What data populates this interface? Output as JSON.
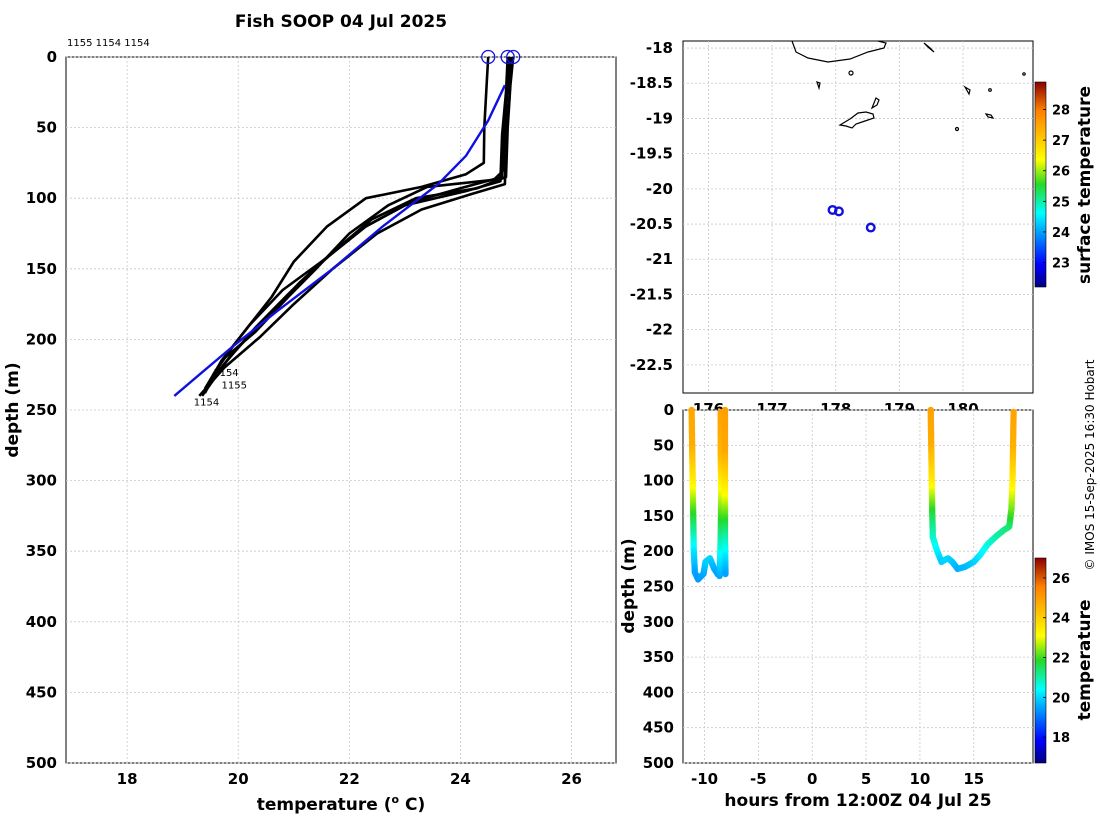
{
  "chart_data": [
    {
      "type": "line",
      "id": "profiles",
      "title": "Fish SOOP 04 Jul 2025",
      "xlabel_main": "temperature (",
      "xlabel_sup": "o",
      "xlabel_end": " C)",
      "ylabel": "depth (m)",
      "xlim": [
        16.9,
        26.8
      ],
      "ylim": [
        0,
        500
      ],
      "xticks": [
        18,
        20,
        22,
        24,
        26
      ],
      "yticks": [
        0,
        50,
        100,
        150,
        200,
        250,
        300,
        350,
        400,
        450,
        500
      ],
      "top_labels": "1155 1154 1154",
      "end_labels": [
        "1154",
        "1155",
        "1154"
      ],
      "colors": {
        "profile": "#000000",
        "mean": "#1010e0"
      },
      "series": [
        {
          "name": "profile-1",
          "values": [
            [
              24.5,
              0
            ],
            [
              24.47,
              20
            ],
            [
              24.43,
              50
            ],
            [
              24.42,
              75
            ],
            [
              24.1,
              83
            ],
            [
              23.3,
              92
            ],
            [
              22.3,
              100
            ],
            [
              21.6,
              120
            ],
            [
              21.0,
              145
            ],
            [
              20.6,
              170
            ],
            [
              20.2,
              190
            ],
            [
              19.9,
              205
            ],
            [
              19.55,
              225
            ]
          ]
        },
        {
          "name": "profile-2",
          "values": [
            [
              24.9,
              0
            ],
            [
              24.85,
              20
            ],
            [
              24.8,
              50
            ],
            [
              24.78,
              80
            ],
            [
              24.6,
              87
            ],
            [
              23.4,
              92
            ],
            [
              22.7,
              105
            ],
            [
              22.0,
              125
            ],
            [
              21.4,
              150
            ],
            [
              20.9,
              170
            ],
            [
              20.3,
              195
            ],
            [
              19.7,
              215
            ],
            [
              19.4,
              235
            ]
          ]
        },
        {
          "name": "profile-3",
          "values": [
            [
              24.95,
              0
            ],
            [
              24.9,
              20
            ],
            [
              24.85,
              50
            ],
            [
              24.82,
              85
            ],
            [
              24.3,
              93
            ],
            [
              23.2,
              100
            ],
            [
              22.4,
              115
            ],
            [
              21.8,
              135
            ],
            [
              21.1,
              160
            ],
            [
              20.5,
              185
            ],
            [
              19.9,
              210
            ],
            [
              19.45,
              232
            ]
          ]
        },
        {
          "name": "profile-4",
          "values": [
            [
              24.85,
              0
            ],
            [
              24.82,
              25
            ],
            [
              24.75,
              55
            ],
            [
              24.72,
              88
            ],
            [
              24.1,
              95
            ],
            [
              23.0,
              105
            ],
            [
              22.2,
              122
            ],
            [
              21.5,
              145
            ],
            [
              20.9,
              168
            ],
            [
              20.3,
              192
            ],
            [
              19.8,
              215
            ],
            [
              19.35,
              240
            ]
          ]
        },
        {
          "name": "profile-5",
          "values": [
            [
              24.92,
              0
            ],
            [
              24.88,
              30
            ],
            [
              24.82,
              60
            ],
            [
              24.8,
              90
            ],
            [
              24.2,
              97
            ],
            [
              23.3,
              108
            ],
            [
              22.5,
              125
            ],
            [
              21.7,
              150
            ],
            [
              21.0,
              175
            ],
            [
              20.4,
              198
            ],
            [
              19.75,
              220
            ],
            [
              19.3,
              240
            ]
          ]
        },
        {
          "name": "profile-6",
          "values": [
            [
              24.88,
              0
            ],
            [
              24.83,
              25
            ],
            [
              24.78,
              55
            ],
            [
              24.75,
              85
            ],
            [
              24.0,
              93
            ],
            [
              23.1,
              103
            ],
            [
              22.3,
              120
            ],
            [
              21.6,
              142
            ],
            [
              20.8,
              165
            ],
            [
              20.2,
              190
            ],
            [
              19.7,
              215
            ],
            [
              19.4,
              238
            ]
          ]
        }
      ],
      "mean": [
        [
          24.8,
          20
        ],
        [
          24.5,
          45
        ],
        [
          24.1,
          70
        ],
        [
          23.6,
          90
        ],
        [
          22.6,
          120
        ],
        [
          21.7,
          150
        ],
        [
          20.7,
          180
        ],
        [
          19.9,
          205
        ],
        [
          19.3,
          225
        ],
        [
          18.85,
          240
        ]
      ],
      "start_markers": [
        [
          24.5,
          0
        ],
        [
          24.85,
          0
        ],
        [
          24.95,
          0
        ]
      ]
    },
    {
      "type": "scatter",
      "id": "map",
      "ylim": [
        -22.9,
        -17.9
      ],
      "xlim": [
        175.6,
        181.1
      ],
      "yticks": [
        -18,
        -18.5,
        -19,
        -19.5,
        -20,
        -20.5,
        -21,
        -21.5,
        -22,
        -22.5
      ],
      "ytick_labels": [
        "-18",
        "-18.5",
        "-19",
        "-19.5",
        "-20",
        "-20.5",
        "-21",
        "-21.5",
        "-22",
        "-22.5"
      ],
      "xticks": [
        176,
        177,
        178,
        179,
        180
      ],
      "xtick_labels": [
        "176",
        "177",
        "178",
        "179",
        "180"
      ],
      "points": [
        [
          177.95,
          -20.3
        ],
        [
          178.05,
          -20.32
        ],
        [
          178.55,
          -20.55
        ]
      ],
      "colorbar": {
        "label": "surface temperature",
        "range": [
          22.2,
          28.9
        ],
        "ticks": [
          23,
          24,
          25,
          26,
          27,
          28
        ]
      }
    },
    {
      "type": "scatter",
      "id": "section",
      "xlabel": "hours from 12:00Z 04 Jul 25",
      "ylabel": "depth (m)",
      "xlim": [
        -12,
        20.5
      ],
      "ylim": [
        0,
        500
      ],
      "xticks": [
        -10,
        -5,
        0,
        5,
        10,
        15
      ],
      "xtick_labels": [
        "-10",
        "-5",
        "0",
        "5",
        "10",
        "15"
      ],
      "yticks": [
        0,
        50,
        100,
        150,
        200,
        250,
        300,
        350,
        400,
        450,
        500
      ],
      "colorbar": {
        "label": "temperature",
        "range": [
          16.7,
          27.0
        ],
        "ticks": [
          18,
          20,
          22,
          24,
          26
        ]
      },
      "casts": [
        {
          "name": "cast-1",
          "values": [
            [
              -11.2,
              0,
              24.8
            ],
            [
              -11.15,
              50,
              24.7
            ],
            [
              -11.1,
              100,
              23.5
            ],
            [
              -11.05,
              150,
              21.8
            ],
            [
              -11.0,
              200,
              20.2
            ],
            [
              -10.9,
              230,
              19.5
            ],
            [
              -10.6,
              240,
              19.4
            ],
            [
              -10.1,
              232,
              19.5
            ],
            [
              -9.9,
              215,
              19.9
            ]
          ]
        },
        {
          "name": "cast-2",
          "values": [
            [
              -9.9,
              215,
              19.9
            ],
            [
              -9.5,
              210,
              20.0
            ],
            [
              -9.1,
              225,
              19.6
            ],
            [
              -8.8,
              232,
              19.5
            ],
            [
              -8.6,
              235,
              19.5
            ],
            [
              -8.5,
              180,
              21.0
            ],
            [
              -8.45,
              120,
              22.8
            ],
            [
              -8.5,
              60,
              24.5
            ],
            [
              -8.5,
              0,
              24.9
            ]
          ]
        },
        {
          "name": "cast-3",
          "values": [
            [
              -8.1,
              0,
              24.95
            ],
            [
              -8.1,
              60,
              24.8
            ],
            [
              -8.1,
              120,
              23.2
            ],
            [
              -8.1,
              180,
              21.0
            ],
            [
              -8.05,
              235,
              19.4
            ]
          ]
        },
        {
          "name": "cast-4",
          "values": [
            [
              11.0,
              0,
              24.9
            ],
            [
              11.05,
              50,
              24.7
            ],
            [
              11.1,
              100,
              23.5
            ],
            [
              11.15,
              150,
              21.6
            ],
            [
              11.2,
              180,
              20.8
            ],
            [
              11.6,
              200,
              20.3
            ],
            [
              12.0,
              215,
              19.9
            ],
            [
              12.6,
              210,
              20.0
            ],
            [
              13.0,
              215,
              19.9
            ],
            [
              13.5,
              225,
              19.6
            ],
            [
              14.2,
              222,
              19.7
            ],
            [
              15.0,
              215,
              19.9
            ],
            [
              15.6,
              205,
              20.2
            ],
            [
              16.3,
              190,
              20.6
            ],
            [
              17.0,
              180,
              20.9
            ],
            [
              17.8,
              170,
              21.2
            ],
            [
              18.3,
              165,
              21.3
            ],
            [
              18.5,
              140,
              22.2
            ],
            [
              18.6,
              100,
              23.4
            ],
            [
              18.65,
              50,
              24.6
            ],
            [
              18.7,
              0,
              24.9
            ]
          ]
        }
      ]
    }
  ],
  "credit": "© IMOS 15-Sep-2025 16:30 Hobart"
}
